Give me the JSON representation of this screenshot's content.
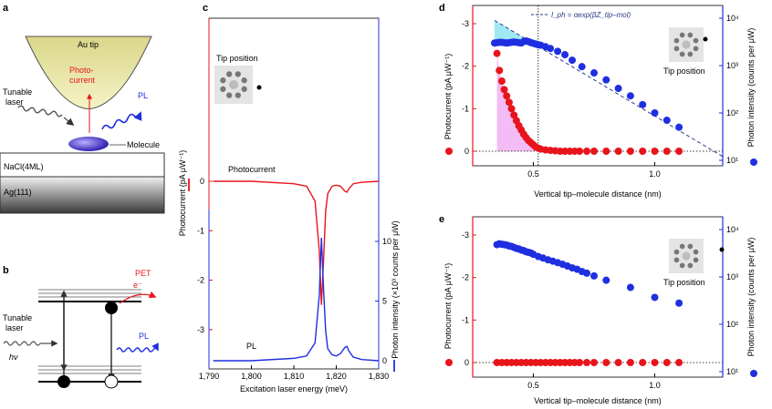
{
  "panels": {
    "a": {
      "letter": "a",
      "tip": "Au tip",
      "photocurrent": "Photo-",
      "photocurrent2": "current",
      "laser1": "Tunable",
      "laser2": "laser",
      "pl": "PL",
      "molecule": "Molecule",
      "nacl": "NaCl(4ML)",
      "ag": "Ag(111)"
    },
    "b": {
      "letter": "b",
      "pet": "PET",
      "electron": "e⁻",
      "laser1": "Tunable",
      "laser2": "laser",
      "hv": "hν",
      "pl": "PL"
    },
    "c": {
      "letter": "c",
      "tip_position": "Tip position"
    },
    "d": {
      "letter": "d",
      "tip_position": "Tip position"
    },
    "e": {
      "letter": "e",
      "tip_position": "Tip position"
    }
  },
  "colors": {
    "red": "#e8141c",
    "blue": "#1f2fe0",
    "dark": "#2a3a8a",
    "cyan": "#7fe0f0",
    "magenta": "#f0a0f0"
  },
  "chart_data": [
    {
      "id": "c",
      "type": "line",
      "xlabel": "Excitation laser energy (meV)",
      "ylabel_left": "Photocurrent (pA μW⁻¹)",
      "ylabel_right": "Photon intensity (×10³ counts per μW)",
      "xlim": [
        1790,
        1830
      ],
      "xticks": [
        "1,790",
        "1,800",
        "1,810",
        "1,820",
        "1,830"
      ],
      "left_ticks": [
        "-3",
        "-2",
        "-1",
        "0"
      ],
      "right_ticks": [
        "10",
        "5",
        "0"
      ],
      "series": [
        {
          "name": "Photocurrent",
          "color": "#e8141c",
          "x": [
            1791,
            1800,
            1810,
            1813,
            1815,
            1816,
            1816.5,
            1817,
            1817.5,
            1818,
            1819,
            1820,
            1821,
            1822,
            1822.5,
            1823,
            1824,
            1826,
            1830
          ],
          "y": [
            0,
            0,
            -0.05,
            -0.1,
            -0.4,
            -1.4,
            -2.5,
            -1.6,
            -0.6,
            -0.25,
            -0.1,
            -0.08,
            -0.1,
            -0.2,
            -0.22,
            -0.15,
            -0.05,
            -0.02,
            0
          ]
        },
        {
          "name": "PL",
          "color": "#1f2fe0",
          "x": [
            1791,
            1800,
            1810,
            1813,
            1815,
            1816,
            1816.5,
            1817,
            1817.5,
            1818,
            1819,
            1820,
            1821,
            1822,
            1822.5,
            1823,
            1824,
            1826,
            1830
          ],
          "y": [
            0,
            0,
            0.2,
            0.4,
            1.5,
            5.5,
            10.3,
            6.0,
            2.5,
            1.0,
            0.5,
            0.4,
            0.6,
            1.1,
            1.2,
            0.8,
            0.3,
            0.1,
            0
          ]
        }
      ]
    },
    {
      "id": "d",
      "type": "scatter",
      "xlabel": "Vertical tip–molecule distance (nm)",
      "ylabel_left": "Photocurrent (pA μW⁻¹)",
      "ylabel_right": "Photon intensity (counts per μW)",
      "legend": "I_ph = αexp(βZ_tip–mol)",
      "xlim": [
        0.25,
        1.28
      ],
      "xticks": [
        "0.5",
        "1.0"
      ],
      "left_ticks": [
        "-3",
        "-2",
        "-1",
        "0"
      ],
      "right_ticks": [
        "10⁴",
        "10³",
        "10²",
        "10¹"
      ],
      "vline_x": 0.52,
      "photocurrent": {
        "x": [
          0.35,
          0.36,
          0.37,
          0.38,
          0.39,
          0.4,
          0.41,
          0.42,
          0.43,
          0.44,
          0.45,
          0.46,
          0.47,
          0.48,
          0.49,
          0.5,
          0.51,
          0.52,
          0.53,
          0.55,
          0.57,
          0.59,
          0.61,
          0.63,
          0.65,
          0.67,
          0.69,
          0.72,
          0.75,
          0.8,
          0.85,
          0.9,
          0.95,
          1.0,
          1.05,
          1.1
        ],
        "y": [
          -2.3,
          -1.9,
          -1.65,
          -1.45,
          -1.3,
          -1.15,
          -1.0,
          -0.85,
          -0.72,
          -0.6,
          -0.5,
          -0.4,
          -0.32,
          -0.25,
          -0.2,
          -0.15,
          -0.1,
          -0.07,
          -0.05,
          -0.03,
          -0.02,
          -0.01,
          0,
          0,
          0,
          0,
          0,
          0,
          0,
          0,
          0,
          0,
          0,
          0,
          0,
          0
        ]
      },
      "photon": {
        "x": [
          0.34,
          0.35,
          0.36,
          0.37,
          0.38,
          0.39,
          0.4,
          0.41,
          0.42,
          0.43,
          0.44,
          0.45,
          0.46,
          0.47,
          0.48,
          0.49,
          0.5,
          0.51,
          0.52,
          0.53,
          0.55,
          0.57,
          0.6,
          0.63,
          0.66,
          0.7,
          0.75,
          0.8,
          0.85,
          0.9,
          0.95,
          1.0,
          1.05,
          1.1
        ],
        "y": [
          3000,
          3050,
          3100,
          3100,
          3050,
          3000,
          3050,
          3100,
          3150,
          3100,
          3050,
          3000,
          3200,
          3300,
          3200,
          3050,
          2950,
          2850,
          2750,
          2700,
          2500,
          2300,
          2000,
          1700,
          1300,
          950,
          700,
          500,
          330,
          230,
          150,
          100,
          70,
          50
        ]
      },
      "fit": {
        "x": [
          0.34,
          1.28
        ],
        "y": [
          9000,
          12
        ]
      }
    },
    {
      "id": "e",
      "type": "scatter",
      "xlabel": "Vertical tip–molecule distance (nm)",
      "ylabel_left": "Photocurrent (pA μW⁻¹)",
      "ylabel_right": "Photon intensity (counts per μW)",
      "xlim": [
        0.25,
        1.28
      ],
      "xticks": [
        "0.5",
        "1.0"
      ],
      "left_ticks": [
        "-3",
        "-2",
        "-1",
        "0"
      ],
      "right_ticks": [
        "10⁴",
        "10³",
        "10²",
        "10¹"
      ],
      "photocurrent": {
        "x": [
          0.35,
          0.37,
          0.39,
          0.41,
          0.43,
          0.45,
          0.47,
          0.49,
          0.51,
          0.53,
          0.55,
          0.57,
          0.59,
          0.61,
          0.63,
          0.65,
          0.67,
          0.69,
          0.72,
          0.75,
          0.8,
          0.85,
          0.9,
          0.95,
          1.0,
          1.05,
          1.1
        ],
        "y": [
          0,
          0,
          0,
          0,
          0,
          0,
          0,
          0,
          0,
          0,
          0,
          0,
          0,
          0,
          0,
          0,
          0,
          0,
          0,
          0,
          0,
          0,
          0,
          0,
          0,
          0,
          0
        ]
      },
      "photon": {
        "x": [
          0.35,
          0.36,
          0.37,
          0.38,
          0.39,
          0.4,
          0.41,
          0.42,
          0.43,
          0.44,
          0.45,
          0.46,
          0.47,
          0.48,
          0.49,
          0.5,
          0.52,
          0.54,
          0.56,
          0.58,
          0.6,
          0.62,
          0.64,
          0.66,
          0.68,
          0.7,
          0.72,
          0.75,
          0.8,
          0.9,
          1.0,
          1.1
        ],
        "y": [
          4800,
          5000,
          4900,
          4800,
          4700,
          4500,
          4400,
          4200,
          4000,
          3900,
          3700,
          3600,
          3400,
          3300,
          3200,
          3000,
          2700,
          2500,
          2300,
          2150,
          2000,
          1850,
          1700,
          1550,
          1450,
          1300,
          1200,
          1050,
          850,
          600,
          370,
          280
        ]
      }
    }
  ]
}
